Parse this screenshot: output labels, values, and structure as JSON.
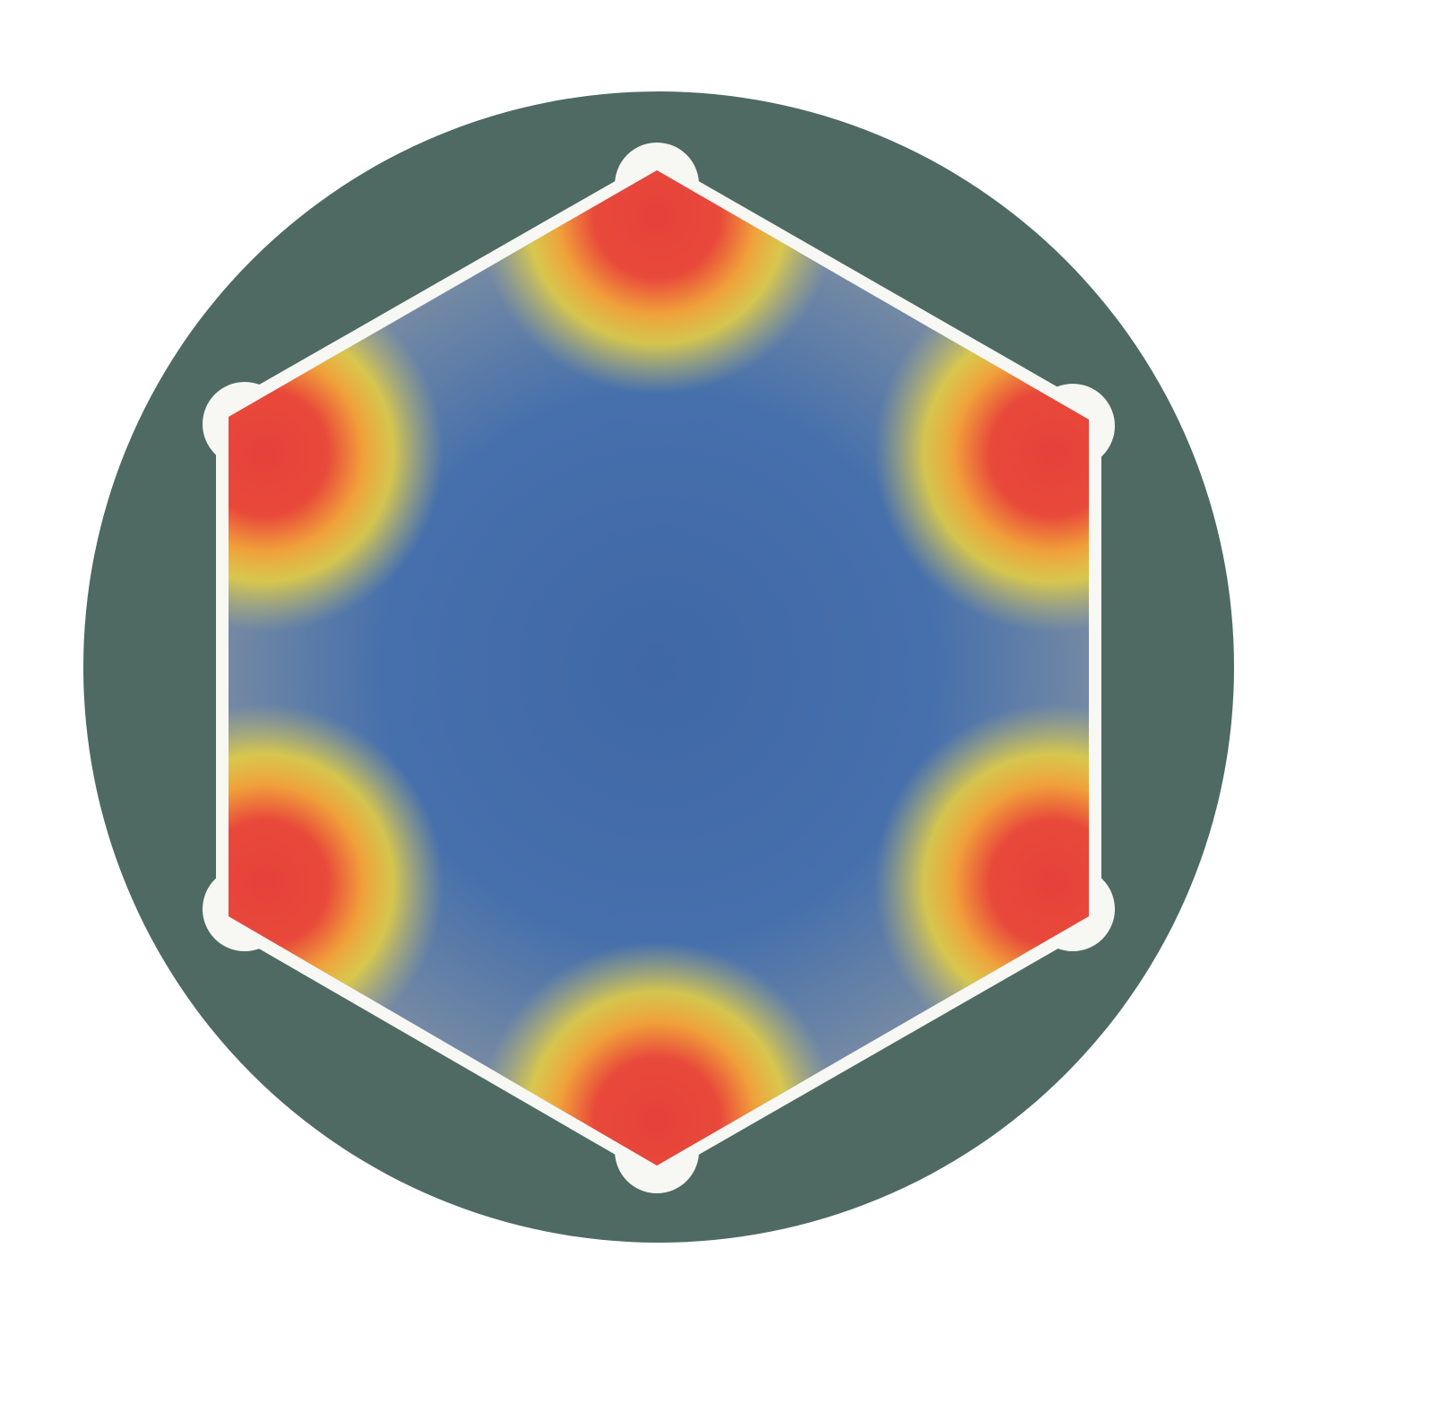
{
  "figure": {
    "shape": "hexagon-in-circle",
    "hot_spots": 6,
    "colors": {
      "background": "#ffffff",
      "outer_disc": "#4e6a62",
      "hexagon_outline": "#f7f7f4",
      "field_center": "#3f68a6",
      "field_edge": "#7d8ea0",
      "field_mid": "#e9cf3c",
      "field_hot": "#e6413a"
    }
  }
}
